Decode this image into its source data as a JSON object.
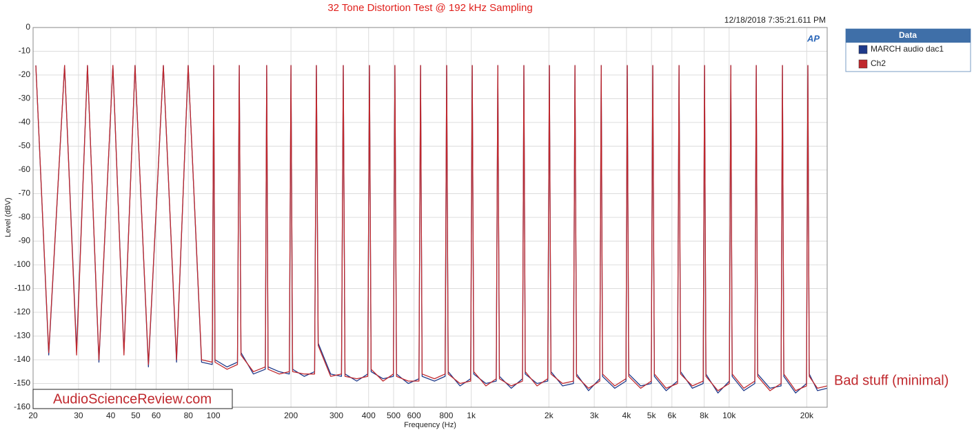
{
  "chart_data": {
    "type": "line",
    "title": "32 Tone Distortion Test @ 192 kHz Sampling",
    "subtitle": "12/18/2018 7:35:21.611 PM",
    "logo": "AP",
    "xlabel": "Frequency (Hz)",
    "ylabel": "Level (dBV)",
    "legend_title": "Data",
    "legend": "outside-right",
    "annotations": [
      "Bad stuff (minimal)",
      "AudioScienceReview.com"
    ],
    "xscale": "log",
    "grid": true,
    "xlim": [
      20,
      24000
    ],
    "ylim": [
      -160,
      0
    ],
    "yticks": [
      0,
      -10,
      -20,
      -30,
      -40,
      -50,
      -60,
      -70,
      -80,
      -90,
      -100,
      -110,
      -120,
      -130,
      -140,
      -150,
      -160
    ],
    "xticks": [
      20,
      30,
      40,
      50,
      60,
      80,
      100,
      200,
      300,
      400,
      500,
      600,
      800,
      {
        "value": 1000,
        "label": "1k"
      },
      {
        "value": 2000,
        "label": "2k"
      },
      {
        "value": 3000,
        "label": "3k"
      },
      {
        "value": 4000,
        "label": "4k"
      },
      {
        "value": 5000,
        "label": "5k"
      },
      {
        "value": 6000,
        "label": "6k"
      },
      {
        "value": 8000,
        "label": "8k"
      },
      {
        "value": 10000,
        "label": "10k"
      },
      {
        "value": 20000,
        "label": "20k"
      }
    ],
    "x": [
      20.5,
      23,
      26.5,
      29.5,
      32.5,
      36,
      40.8,
      45,
      49.7,
      56,
      64,
      72,
      79.9,
      90,
      99,
      100.3,
      101.5,
      113,
      124,
      126,
      128,
      143,
      159,
      161,
      163,
      180,
      197,
      200,
      203,
      225,
      247,
      251,
      255,
      285,
      314,
      319,
      324,
      360,
      397,
      403,
      409,
      455,
      499,
      506,
      513,
      570,
      627,
      636,
      645,
      720,
      792,
      803,
      814,
      905,
      995,
      1009,
      1023,
      1140,
      1250,
      1268,
      1286,
      1430,
      1580,
      1600,
      1620,
      1800,
      1980,
      2009,
      2038,
      2260,
      2490,
      2524,
      2560,
      2850,
      3150,
      3191,
      3230,
      3600,
      3980,
      4029,
      4080,
      4540,
      4990,
      5058,
      5130,
      5700,
      6310,
      6393,
      6480,
      7200,
      7930,
      8032,
      8130,
      9050,
      10020,
      10150,
      10280,
      11400,
      12580,
      12740,
      12900,
      14400,
      15900,
      16100,
      16300,
      18100,
      19950,
      20200,
      20450,
      22000,
      24000
    ],
    "series": [
      {
        "name": "MARCH audio dac1",
        "color": "#1f3a8a",
        "values": [
          -16,
          -138,
          -16,
          -136,
          -16,
          -141,
          -16,
          -137,
          -16,
          -143,
          -16,
          -141,
          -16,
          -141,
          -142,
          -16,
          -140,
          -143,
          -141,
          -16,
          -137,
          -146,
          -144,
          -16,
          -143,
          -145,
          -146,
          -16,
          -144,
          -147,
          -145,
          -16,
          -133,
          -146,
          -147,
          -16,
          -146,
          -149,
          -146,
          -16,
          -145,
          -148,
          -147,
          -16,
          -146,
          -150,
          -148,
          -16,
          -147,
          -149,
          -147,
          -16,
          -145,
          -151,
          -148,
          -16,
          -146,
          -150,
          -149,
          -16,
          -147,
          -152,
          -148,
          -16,
          -146,
          -150,
          -149,
          -16,
          -145,
          -151,
          -150,
          -16,
          -146,
          -153,
          -148,
          -16,
          -147,
          -152,
          -149,
          -16,
          -146,
          -151,
          -150,
          -16,
          -147,
          -153,
          -149,
          -16,
          -145,
          -152,
          -150,
          -16,
          -146,
          -154,
          -149,
          -16,
          -147,
          -153,
          -150,
          -16,
          -146,
          -152,
          -151,
          -16,
          -147,
          -154,
          -150,
          -16,
          -146,
          -153,
          -152
        ]
      },
      {
        "name": "Ch2",
        "color": "#c0282d",
        "values": [
          -16,
          -137,
          -16,
          -138,
          -16,
          -140,
          -16,
          -138,
          -16,
          -142,
          -16,
          -140,
          -16,
          -140,
          -141,
          -16,
          -141,
          -144,
          -142,
          -16,
          -138,
          -145,
          -143,
          -16,
          -144,
          -146,
          -145,
          -16,
          -145,
          -146,
          -146,
          -16,
          -134,
          -147,
          -146,
          -16,
          -147,
          -148,
          -147,
          -16,
          -144,
          -149,
          -146,
          -16,
          -147,
          -149,
          -149,
          -16,
          -146,
          -148,
          -146,
          -16,
          -146,
          -150,
          -149,
          -16,
          -145,
          -151,
          -148,
          -16,
          -148,
          -151,
          -149,
          -16,
          -145,
          -151,
          -148,
          -16,
          -146,
          -150,
          -149,
          -16,
          -147,
          -152,
          -149,
          -16,
          -146,
          -151,
          -148,
          -16,
          -147,
          -152,
          -149,
          -16,
          -146,
          -152,
          -150,
          -16,
          -146,
          -151,
          -149,
          -16,
          -147,
          -153,
          -150,
          -16,
          -146,
          -152,
          -149,
          -16,
          -147,
          -153,
          -150,
          -16,
          -146,
          -153,
          -151,
          -16,
          -147,
          -152,
          -151
        ]
      }
    ]
  }
}
